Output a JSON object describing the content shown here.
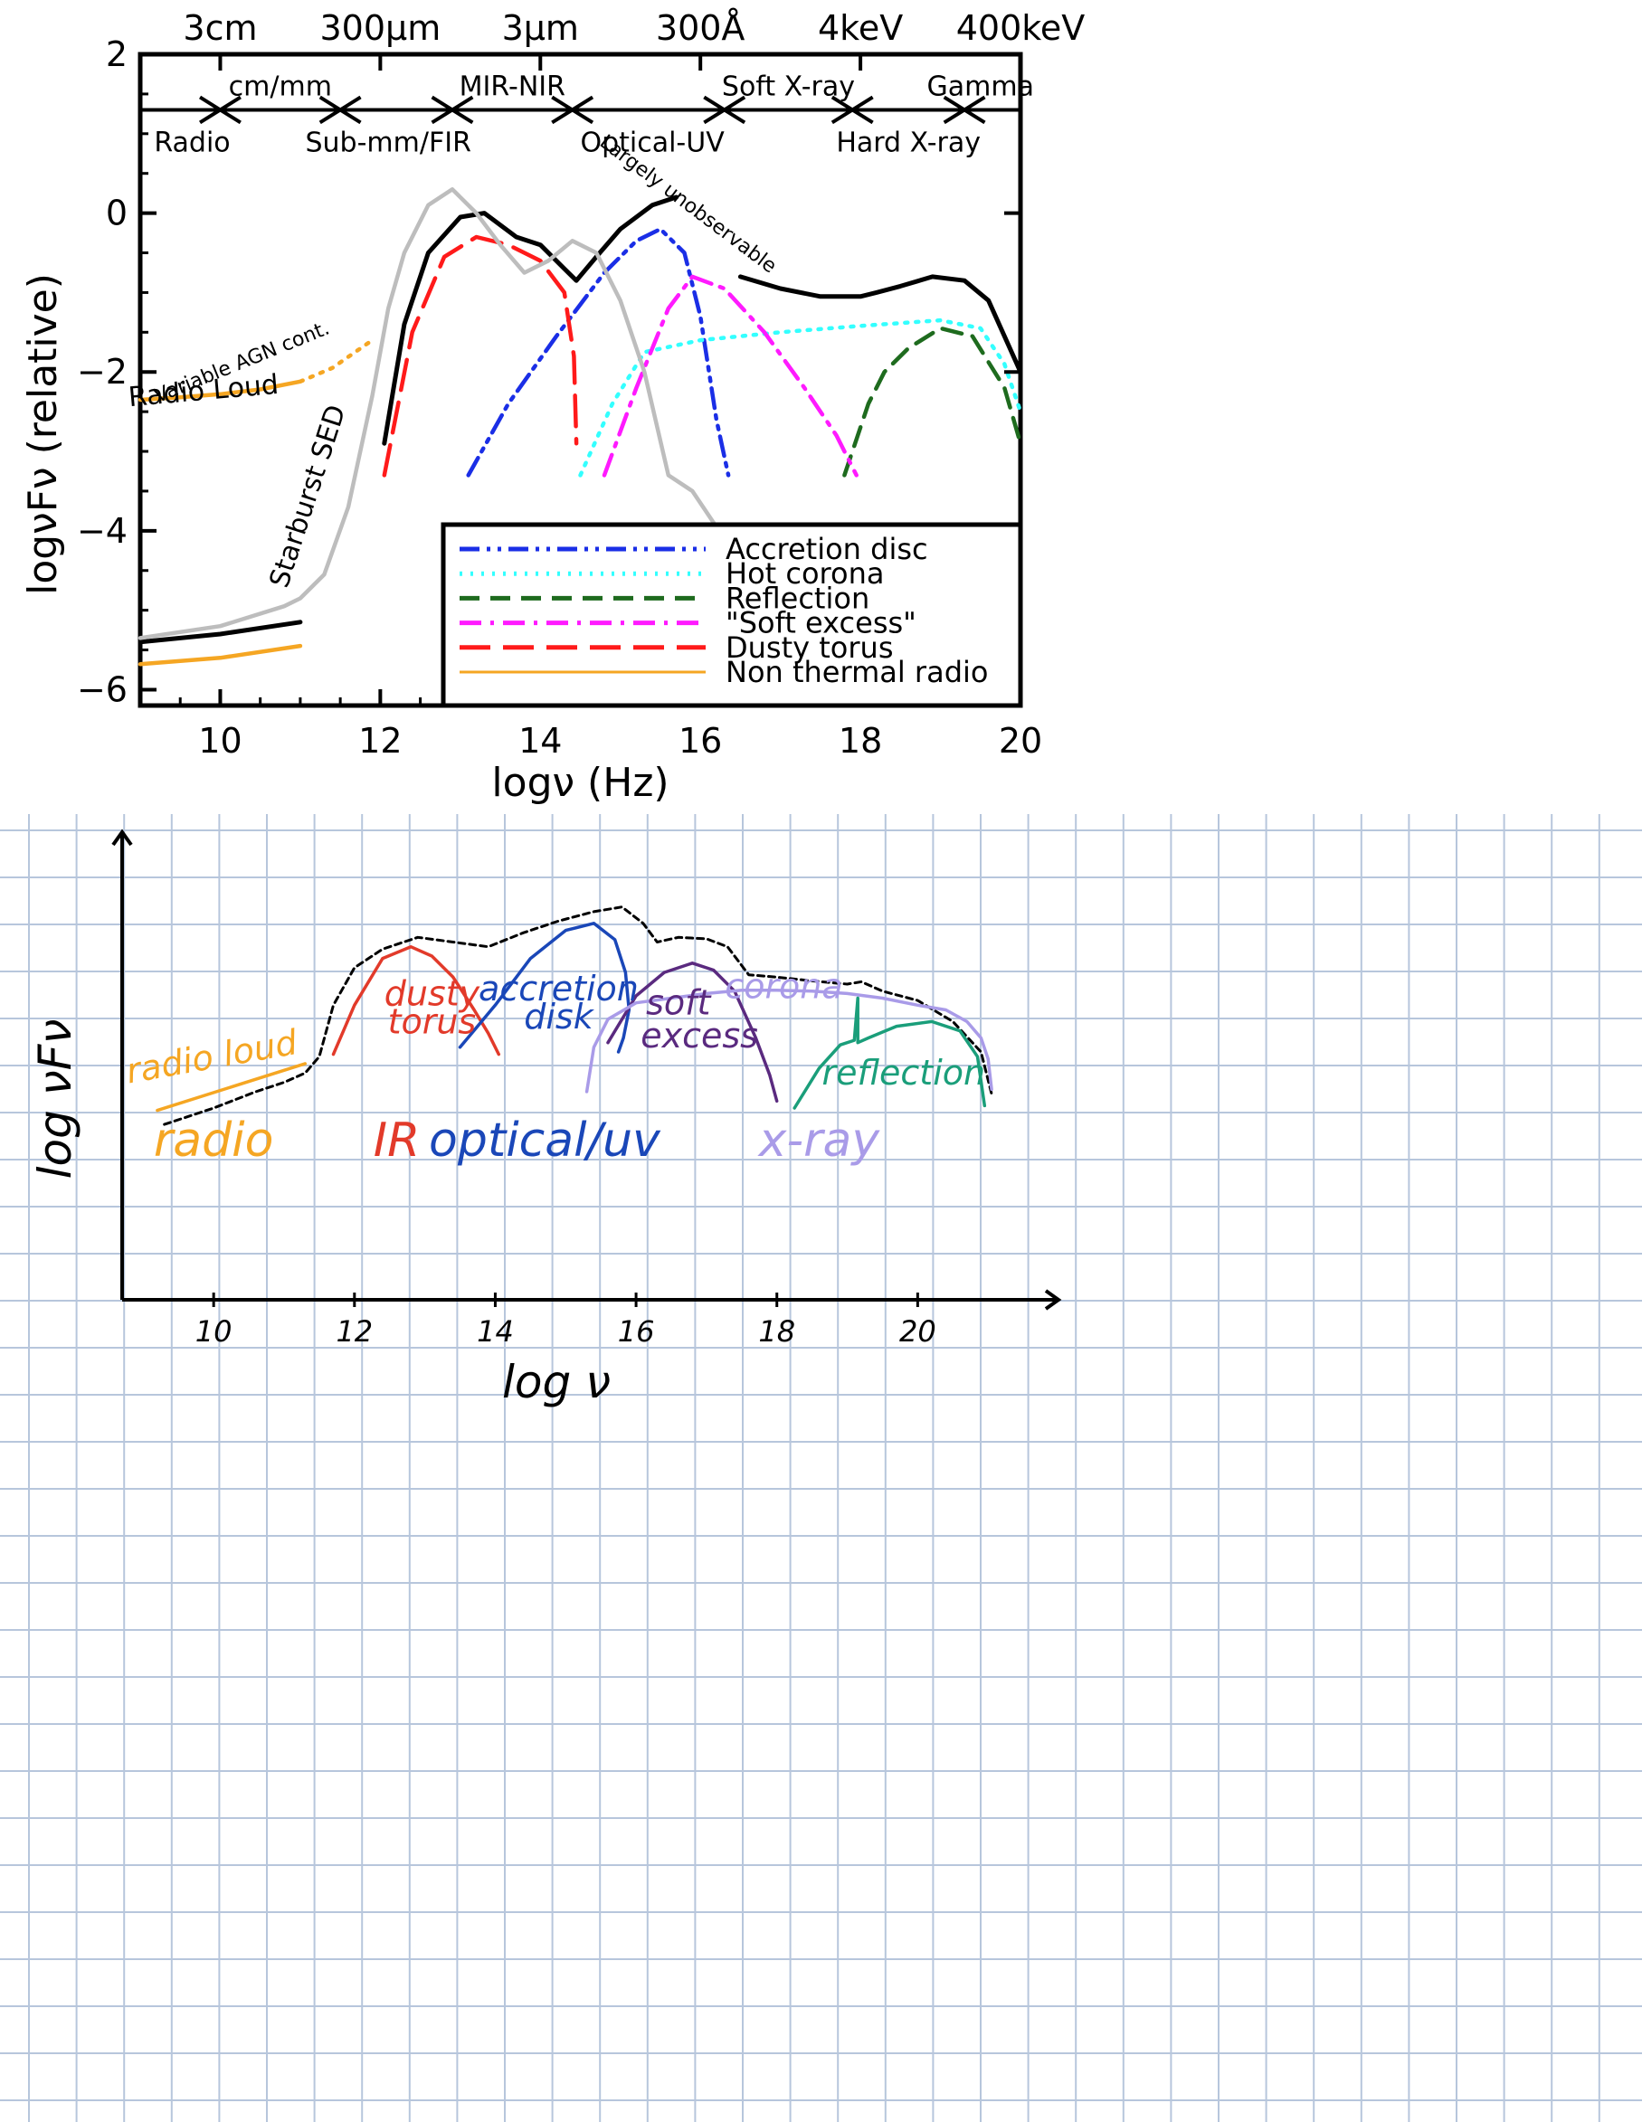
{
  "chart_data": [
    {
      "type": "line",
      "title": "",
      "xlabel": "logν (Hz)",
      "ylabel": "logνFν (relative)",
      "xlim": [
        9,
        20
      ],
      "ylim": [
        -6.2,
        2.0
      ],
      "xticks": [
        10,
        12,
        14,
        16,
        18,
        20
      ],
      "yticks": [
        2,
        0,
        -2,
        -4,
        -6
      ],
      "top_axis_labels": [
        {
          "x": 10,
          "label": "3cm"
        },
        {
          "x": 12,
          "label": "300μm"
        },
        {
          "x": 14,
          "label": "3μm"
        },
        {
          "x": 16,
          "label": "300Å"
        },
        {
          "x": 18,
          "label": "4keV"
        },
        {
          "x": 20,
          "label": "400keV"
        }
      ],
      "bands": {
        "line_y": 1.3,
        "boundaries": [
          10,
          11.5,
          12.9,
          14.4,
          16.3,
          17.9,
          19.3
        ],
        "upper_labels": [
          {
            "x": 10.75,
            "label": "cm/mm"
          },
          {
            "x": 13.65,
            "label": "MIR-NIR"
          },
          {
            "x": 17.1,
            "label": "Soft X-ray"
          },
          {
            "x": 19.5,
            "label": "Gamma"
          }
        ],
        "lower_labels": [
          {
            "x": 9.65,
            "label": "Radio"
          },
          {
            "x": 12.1,
            "label": "Sub-mm/FIR"
          },
          {
            "x": 15.4,
            "label": "Optical-UV"
          },
          {
            "x": 18.6,
            "label": "Hard X-ray"
          }
        ]
      },
      "annotations": [
        {
          "text": "Variable AGN cont.",
          "x": 10.3,
          "y": -1.95,
          "angle": -22
        },
        {
          "text": "Radio Loud",
          "x": 9.8,
          "y": -2.35,
          "angle": -5
        },
        {
          "text": "Starburst SED",
          "x": 11.2,
          "y": -3.6,
          "angle": -72
        },
        {
          "text": "Largely unobservable",
          "x": 15.8,
          "y": 0.05,
          "angle": 37
        }
      ],
      "legend_placement": "lower-right",
      "series": [
        {
          "name": "Accretion disc",
          "color": "#1a2ee6",
          "dash": "dashdotdot",
          "x": [
            13.1,
            13.6,
            14.2,
            14.8,
            15.2,
            15.5,
            15.8,
            16.0,
            16.2,
            16.35
          ],
          "y": [
            -3.3,
            -2.4,
            -1.55,
            -0.75,
            -0.35,
            -0.2,
            -0.5,
            -1.3,
            -2.6,
            -3.3
          ]
        },
        {
          "name": "Hot corona",
          "color": "#33ffff",
          "dash": "dotted",
          "x": [
            14.5,
            14.9,
            15.3,
            16.0,
            17.0,
            18.0,
            19.0,
            19.5,
            19.8,
            20.0
          ],
          "y": [
            -3.3,
            -2.4,
            -1.75,
            -1.6,
            -1.5,
            -1.42,
            -1.35,
            -1.45,
            -1.9,
            -2.5
          ]
        },
        {
          "name": "Reflection",
          "color": "#1e6b1e",
          "dash": "dashed",
          "x": [
            17.8,
            18.1,
            18.3,
            18.6,
            19.0,
            19.4,
            19.8,
            20.0
          ],
          "y": [
            -3.3,
            -2.4,
            -2.0,
            -1.7,
            -1.45,
            -1.55,
            -2.2,
            -2.9
          ]
        },
        {
          "name": "\"Soft excess\"",
          "color": "#ff1aff",
          "dash": "dashdot",
          "x": [
            14.8,
            15.2,
            15.6,
            15.9,
            16.3,
            16.8,
            17.3,
            17.7,
            17.95
          ],
          "y": [
            -3.3,
            -2.2,
            -1.2,
            -0.8,
            -0.95,
            -1.5,
            -2.2,
            -2.8,
            -3.3
          ]
        },
        {
          "name": "Dusty torus",
          "color": "#ff1a1a",
          "dash": "longdash",
          "x": [
            12.05,
            12.4,
            12.8,
            13.2,
            13.6,
            14.0,
            14.3,
            14.42,
            14.45
          ],
          "y": [
            -3.3,
            -1.5,
            -0.55,
            -0.3,
            -0.4,
            -0.6,
            -1.0,
            -1.8,
            -2.9
          ]
        },
        {
          "name": "Non thermal radio",
          "color": "#f5a623",
          "dash": "solid",
          "x": [
            9.0,
            10.0,
            11.0
          ],
          "y": [
            -5.68,
            -5.6,
            -5.45
          ]
        },
        {
          "name": "",
          "color": "#000000",
          "dash": "solid",
          "width": 5,
          "x": [
            9.0,
            10.0,
            11.0
          ],
          "y": [
            -5.4,
            -5.3,
            -5.15
          ]
        },
        {
          "name": "",
          "color": "#000000",
          "dash": "solid",
          "width": 5,
          "x": [
            12.05,
            12.3,
            12.6,
            13.0,
            13.3,
            13.7,
            14.0,
            14.3,
            14.45,
            14.7,
            15.0,
            15.4,
            15.7
          ],
          "y": [
            -2.9,
            -1.4,
            -0.5,
            -0.05,
            0.0,
            -0.3,
            -0.4,
            -0.7,
            -0.85,
            -0.55,
            -0.2,
            0.1,
            0.2
          ]
        },
        {
          "name": "",
          "color": "#000000",
          "dash": "solid",
          "width": 5,
          "x": [
            16.5,
            17.0,
            17.5,
            18.0,
            18.2,
            18.5,
            18.9,
            19.3,
            19.6,
            20.0
          ],
          "y": [
            -0.8,
            -0.95,
            -1.05,
            -1.05,
            -1.0,
            -0.92,
            -0.8,
            -0.85,
            -1.1,
            -2.0
          ]
        },
        {
          "name": "",
          "color": "#f5a623",
          "dash": "solid",
          "x": [
            9.0,
            9.5,
            10.0,
            10.5,
            11.0
          ],
          "y": [
            -2.35,
            -2.32,
            -2.28,
            -2.22,
            -2.12
          ]
        },
        {
          "name": "",
          "color": "#f5a623",
          "dash": "dotted",
          "x": [
            11.0,
            11.4,
            11.9
          ],
          "y": [
            -2.12,
            -1.95,
            -1.6
          ]
        },
        {
          "name": "",
          "color": "#bdbdbd",
          "dash": "solid",
          "x": [
            9.0,
            10.0,
            10.8,
            11.0,
            11.3,
            11.6,
            11.9,
            12.1,
            12.3,
            12.6,
            12.9,
            13.2,
            13.5,
            13.8,
            14.1,
            14.4,
            14.7,
            15.0,
            15.3,
            15.6,
            15.9,
            16.3
          ],
          "y": [
            -5.35,
            -5.2,
            -4.95,
            -4.85,
            -4.55,
            -3.7,
            -2.3,
            -1.2,
            -0.5,
            0.1,
            0.3,
            0.0,
            -0.4,
            -0.75,
            -0.6,
            -0.35,
            -0.5,
            -1.1,
            -2.0,
            -3.3,
            -3.5,
            -4.1
          ]
        }
      ]
    },
    {
      "type": "line",
      "title": "",
      "xlabel": "log ν",
      "ylabel": "log νFν",
      "xlim": [
        8.7,
        22.0
      ],
      "ylim": [
        0,
        10
      ],
      "xticks": [
        10,
        12,
        14,
        16,
        18,
        20
      ],
      "grid": true,
      "region_labels": [
        {
          "text": "radio",
          "color": "#f5a623",
          "x": 10.0
        },
        {
          "text": "IR",
          "color": "#e23a2a",
          "x": 12.6
        },
        {
          "text": "optical/uv",
          "color": "#1a47b8",
          "x": 14.7
        },
        {
          "text": "x-ray",
          "color": "#a99be8",
          "x": 18.6
        }
      ],
      "curve_labels": [
        {
          "text": "radio loud",
          "color": "#f5a623",
          "x": 10.0,
          "y": 4.95,
          "angle": -10
        },
        {
          "text": "dusty",
          "color": "#e23a2a",
          "x": 13.1,
          "y": 6.3
        },
        {
          "text": "torus",
          "color": "#e23a2a",
          "x": 13.1,
          "y": 5.7
        },
        {
          "text": "accretion",
          "color": "#1a47b8",
          "x": 14.9,
          "y": 6.4
        },
        {
          "text": "disk",
          "color": "#1a47b8",
          "x": 14.9,
          "y": 5.8
        },
        {
          "text": "soft",
          "color": "#5a2a7f",
          "x": 16.6,
          "y": 6.1
        },
        {
          "text": "excess",
          "color": "#5a2a7f",
          "x": 16.9,
          "y": 5.4
        },
        {
          "text": "corona",
          "color": "#a99be8",
          "x": 18.1,
          "y": 6.45
        },
        {
          "text": "reflection",
          "color": "#1a9e7a",
          "x": 19.8,
          "y": 4.6
        }
      ],
      "series": [
        {
          "name": "",
          "color": "#000000",
          "dash": "dashed",
          "x": [
            9.3,
            10.0,
            10.6,
            11.0,
            11.3,
            11.5,
            11.7,
            12.0,
            12.4,
            12.9,
            13.4,
            13.9,
            14.4,
            14.9,
            15.4,
            15.8,
            16.1,
            16.3,
            16.6,
            17.0,
            17.3,
            17.6,
            18.0,
            18.5,
            19.0,
            19.2,
            19.5,
            20.0,
            20.5,
            20.9,
            21.05
          ],
          "y": [
            3.75,
            4.1,
            4.45,
            4.65,
            4.85,
            5.2,
            6.3,
            7.1,
            7.5,
            7.75,
            7.65,
            7.55,
            7.85,
            8.1,
            8.3,
            8.4,
            8.05,
            7.65,
            7.75,
            7.72,
            7.55,
            6.95,
            6.9,
            6.82,
            6.75,
            6.8,
            6.6,
            6.4,
            5.95,
            5.3,
            4.4
          ]
        },
        {
          "name": "",
          "color": "#f5a623",
          "dash": "solid",
          "x": [
            9.2,
            11.3
          ],
          "y": [
            4.05,
            5.05
          ]
        },
        {
          "name": "",
          "color": "#e23a2a",
          "dash": "solid",
          "x": [
            11.7,
            12.0,
            12.4,
            12.8,
            13.1,
            13.4,
            13.7,
            13.9,
            14.05
          ],
          "y": [
            5.25,
            6.3,
            7.3,
            7.55,
            7.35,
            6.9,
            6.2,
            5.7,
            5.25
          ]
        },
        {
          "name": "",
          "color": "#1a47b8",
          "dash": "solid",
          "x": [
            13.5,
            14.0,
            14.5,
            15.0,
            15.4,
            15.7,
            15.85,
            15.9,
            15.82,
            15.75
          ],
          "y": [
            5.4,
            6.3,
            7.3,
            7.9,
            8.05,
            7.7,
            7.0,
            6.2,
            5.6,
            5.3
          ]
        },
        {
          "name": "",
          "color": "#5a2a7f",
          "dash": "solid",
          "x": [
            15.6,
            16.0,
            16.4,
            16.8,
            17.1,
            17.4,
            17.7,
            17.9,
            18.0
          ],
          "y": [
            5.5,
            6.5,
            7.0,
            7.2,
            7.05,
            6.6,
            5.6,
            4.8,
            4.25
          ]
        },
        {
          "name": "",
          "color": "#a99be8",
          "dash": "solid",
          "x": [
            15.3,
            15.4,
            15.6,
            16.0,
            16.5,
            17.0,
            17.5,
            18.0,
            18.5,
            19.0,
            19.5,
            20.0,
            20.4,
            20.7,
            20.9,
            21.0,
            21.05
          ],
          "y": [
            4.45,
            5.4,
            6.0,
            6.35,
            6.45,
            6.55,
            6.62,
            6.62,
            6.6,
            6.55,
            6.45,
            6.3,
            6.2,
            5.95,
            5.6,
            5.15,
            4.5
          ]
        },
        {
          "name": "",
          "color": "#1a9e7a",
          "dash": "solid",
          "x": [
            18.25,
            18.6,
            18.9,
            19.1,
            19.15,
            19.15,
            19.3,
            19.7,
            20.2,
            20.6,
            20.85,
            20.95
          ],
          "y": [
            4.1,
            4.95,
            5.45,
            5.55,
            6.45,
            5.5,
            5.6,
            5.85,
            5.95,
            5.75,
            5.2,
            4.15
          ]
        }
      ]
    }
  ]
}
